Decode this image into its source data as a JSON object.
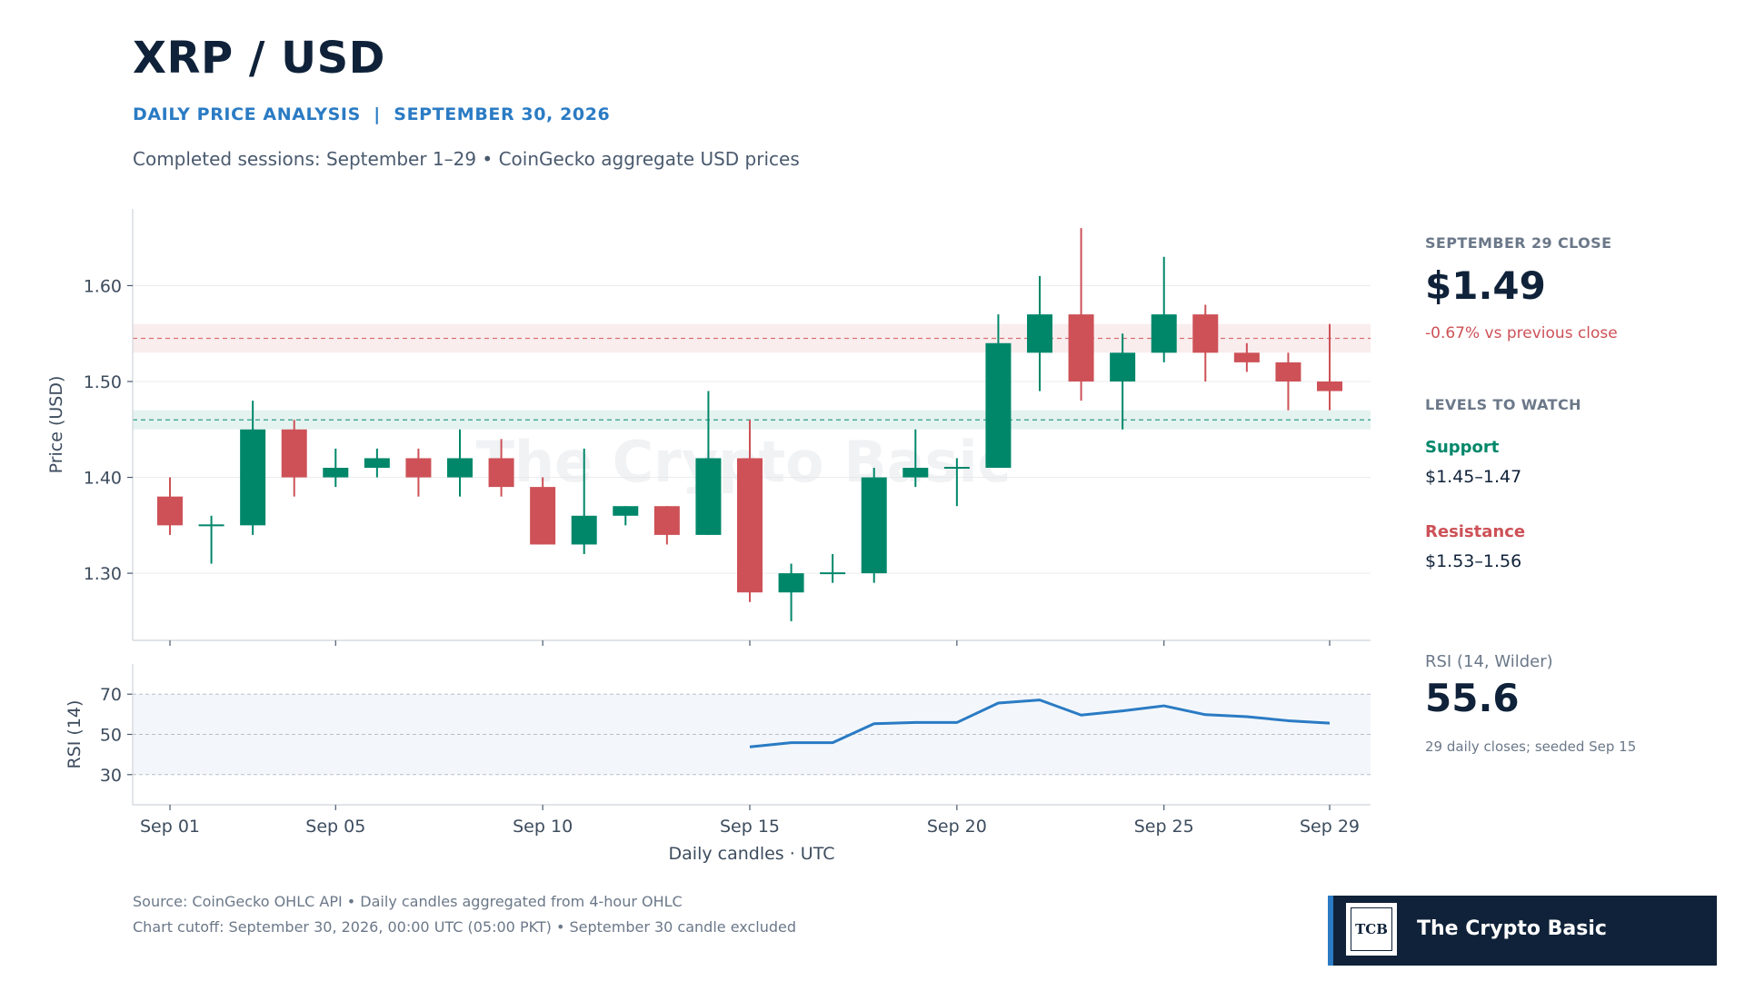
{
  "header": {
    "title": "XRP / USD",
    "subtitle": "DAILY PRICE ANALYSIS  |  SEPTEMBER 30, 2026",
    "description": "Completed sessions: September 1–29  •  CoinGecko aggregate USD prices"
  },
  "sidebar": {
    "close_label": "SEPTEMBER 29 CLOSE",
    "close_value": "$1.49",
    "change_text": "-0.67% vs previous close",
    "levels_label": "LEVELS TO WATCH",
    "support_label": "Support",
    "support_value": "$1.45–1.47",
    "resistance_label": "Resistance",
    "resistance_value": "$1.53–1.56",
    "rsi_label": "RSI (14, Wilder)",
    "rsi_value": "55.6",
    "rsi_note": "29 daily closes; seeded Sep 15"
  },
  "footer": {
    "source": "Source: CoinGecko OHLC API • Daily candles aggregated from 4-hour OHLC",
    "cutoff": "Chart cutoff: September 30, 2026, 00:00 UTC (05:00 PKT) • September 30 candle excluded"
  },
  "brand": {
    "name": "The Crypto Basic",
    "watermark": "The Crypto Basic",
    "logo_letters": "TCB"
  },
  "colors": {
    "up": "#00876a",
    "down": "#cd5157",
    "support": "#00876a",
    "resistance": "#cd5157",
    "rsi_line": "#2a7bc4",
    "title": "#0f2239",
    "accent": "#2a7bc4"
  },
  "chart_data": [
    {
      "type": "candlestick",
      "ylabel": "Price (USD)",
      "xlabel": "Daily candles · UTC",
      "ylim": [
        1.23,
        1.68
      ],
      "yticks": [
        1.3,
        1.4,
        1.5,
        1.6
      ],
      "ytick_labels": [
        "1.30",
        "1.40",
        "1.50",
        "1.60"
      ],
      "xticks": [
        1,
        5,
        10,
        15,
        20,
        25,
        29
      ],
      "xtick_labels": [
        "Sep 01",
        "Sep 05",
        "Sep 10",
        "Sep 15",
        "Sep 20",
        "Sep 25",
        "Sep 29"
      ],
      "support_band": [
        1.45,
        1.47
      ],
      "support_line": 1.46,
      "resistance_band": [
        1.53,
        1.56
      ],
      "resistance_line": 1.545,
      "grid": true,
      "candles": [
        {
          "day": 1,
          "open": 1.38,
          "high": 1.4,
          "low": 1.34,
          "close": 1.35
        },
        {
          "day": 2,
          "open": 1.35,
          "high": 1.36,
          "low": 1.31,
          "close": 1.35
        },
        {
          "day": 3,
          "open": 1.35,
          "high": 1.48,
          "low": 1.34,
          "close": 1.45
        },
        {
          "day": 4,
          "open": 1.45,
          "high": 1.46,
          "low": 1.38,
          "close": 1.4
        },
        {
          "day": 5,
          "open": 1.4,
          "high": 1.43,
          "low": 1.39,
          "close": 1.41
        },
        {
          "day": 6,
          "open": 1.41,
          "high": 1.43,
          "low": 1.4,
          "close": 1.42
        },
        {
          "day": 7,
          "open": 1.42,
          "high": 1.43,
          "low": 1.38,
          "close": 1.4
        },
        {
          "day": 8,
          "open": 1.4,
          "high": 1.45,
          "low": 1.38,
          "close": 1.42
        },
        {
          "day": 9,
          "open": 1.42,
          "high": 1.44,
          "low": 1.38,
          "close": 1.39
        },
        {
          "day": 10,
          "open": 1.39,
          "high": 1.4,
          "low": 1.33,
          "close": 1.33
        },
        {
          "day": 11,
          "open": 1.33,
          "high": 1.43,
          "low": 1.32,
          "close": 1.36
        },
        {
          "day": 12,
          "open": 1.36,
          "high": 1.37,
          "low": 1.35,
          "close": 1.37
        },
        {
          "day": 13,
          "open": 1.37,
          "high": 1.37,
          "low": 1.33,
          "close": 1.34
        },
        {
          "day": 14,
          "open": 1.34,
          "high": 1.49,
          "low": 1.34,
          "close": 1.42
        },
        {
          "day": 15,
          "open": 1.42,
          "high": 1.46,
          "low": 1.27,
          "close": 1.28
        },
        {
          "day": 16,
          "open": 1.28,
          "high": 1.31,
          "low": 1.25,
          "close": 1.3
        },
        {
          "day": 17,
          "open": 1.3,
          "high": 1.32,
          "low": 1.29,
          "close": 1.3
        },
        {
          "day": 18,
          "open": 1.3,
          "high": 1.41,
          "low": 1.29,
          "close": 1.4
        },
        {
          "day": 19,
          "open": 1.4,
          "high": 1.45,
          "low": 1.39,
          "close": 1.41
        },
        {
          "day": 20,
          "open": 1.41,
          "high": 1.42,
          "low": 1.37,
          "close": 1.41
        },
        {
          "day": 21,
          "open": 1.41,
          "high": 1.57,
          "low": 1.41,
          "close": 1.54
        },
        {
          "day": 22,
          "open": 1.53,
          "high": 1.61,
          "low": 1.49,
          "close": 1.57
        },
        {
          "day": 23,
          "open": 1.57,
          "high": 1.66,
          "low": 1.48,
          "close": 1.5
        },
        {
          "day": 24,
          "open": 1.5,
          "high": 1.55,
          "low": 1.45,
          "close": 1.53
        },
        {
          "day": 25,
          "open": 1.53,
          "high": 1.63,
          "low": 1.52,
          "close": 1.57
        },
        {
          "day": 26,
          "open": 1.57,
          "high": 1.58,
          "low": 1.5,
          "close": 1.53
        },
        {
          "day": 27,
          "open": 1.53,
          "high": 1.54,
          "low": 1.51,
          "close": 1.52
        },
        {
          "day": 28,
          "open": 1.52,
          "high": 1.53,
          "low": 1.47,
          "close": 1.5
        },
        {
          "day": 29,
          "open": 1.5,
          "high": 1.56,
          "low": 1.47,
          "close": 1.49
        }
      ]
    },
    {
      "type": "line",
      "ylabel": "RSI (14)",
      "ylim": [
        15,
        85
      ],
      "yticks": [
        30,
        50,
        70
      ],
      "ytick_labels": [
        "30",
        "50",
        "70"
      ],
      "band": [
        30,
        70
      ],
      "x": [
        15,
        16,
        17,
        18,
        19,
        20,
        21,
        22,
        23,
        24,
        25,
        26,
        27,
        28,
        29
      ],
      "values": [
        43.8,
        45.9,
        45.9,
        55.3,
        55.9,
        55.9,
        65.6,
        67.1,
        59.6,
        61.7,
        64.2,
        59.8,
        58.8,
        56.8,
        55.6
      ]
    }
  ]
}
